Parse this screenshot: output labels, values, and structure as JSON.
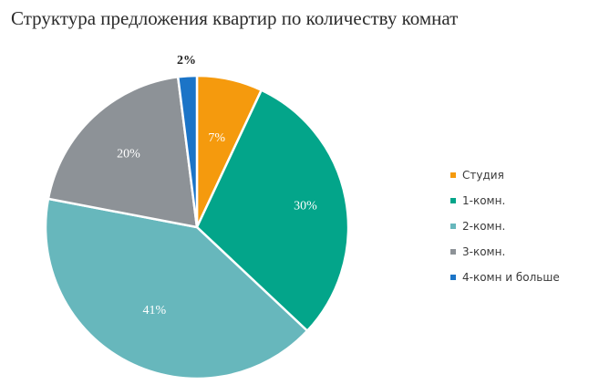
{
  "chart_data": {
    "type": "pie",
    "title": "Структура предложения квартир по количеству комнат",
    "legend_position": "right",
    "slices": [
      {
        "name": "Студия",
        "value": 7,
        "label": "7%",
        "color": "#f59a0d",
        "label_color": "#ffffff"
      },
      {
        "name": "1-комн.",
        "value": 30,
        "label": "30%",
        "color": "#03a58a",
        "label_color": "#ffffff"
      },
      {
        "name": "2-комн.",
        "value": 41,
        "label": "41%",
        "color": "#67b7bc",
        "label_color": "#ffffff"
      },
      {
        "name": "3-комн.",
        "value": 20,
        "label": "20%",
        "color": "#8d9297",
        "label_color": "#ffffff"
      },
      {
        "name": "4-комн и больше",
        "value": 2,
        "label": "2%",
        "color": "#1b74c7",
        "label_color": "#222222"
      }
    ]
  }
}
